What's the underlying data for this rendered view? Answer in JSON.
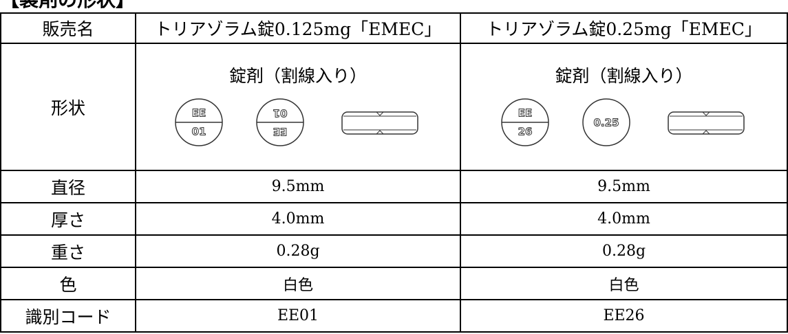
{
  "heading": "【製剤の形状】",
  "table": {
    "header": [
      "販売名",
      "トリアゾラム錠0.125mg「EMEC」",
      "トリアゾラム錠0.25mg「EMEC」"
    ],
    "shape": {
      "label": "形状",
      "products": [
        {
          "form": "錠剤（割線入り）",
          "front_top": "EE",
          "front_bottom": "01",
          "back": null
        },
        {
          "form": "錠剤（割線入り）",
          "front_top": "EE",
          "front_bottom": "26",
          "back": "0.25"
        }
      ]
    },
    "rows": [
      [
        "直径",
        "9.5mm",
        "9.5mm"
      ],
      [
        "厚さ",
        "4.0mm",
        "4.0mm"
      ],
      [
        "重さ",
        "0.28g",
        "0.28g"
      ],
      [
        "色",
        "白色",
        "白色"
      ],
      [
        "識別コード",
        "EE01",
        "EE26"
      ]
    ]
  }
}
